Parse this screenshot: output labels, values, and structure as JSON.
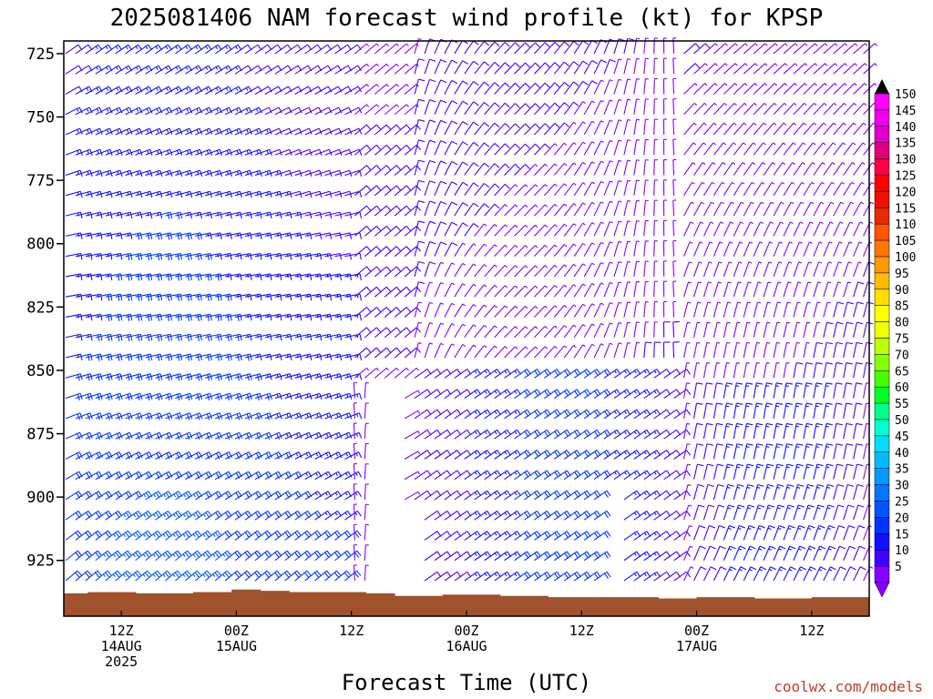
{
  "chart_data": {
    "type": "wind-barb-profile",
    "title": "2025081406 NAM forecast wind profile (kt) for KPSP",
    "xlabel": "Forecast Time (UTC)",
    "credit": "coolwx.com/models",
    "y_ticks": [
      725,
      750,
      775,
      800,
      825,
      850,
      875,
      900,
      925
    ],
    "y_range_hpa": [
      720,
      947
    ],
    "x_ticks": [
      {
        "hour": 6,
        "l1": "12Z",
        "l2": "14AUG",
        "l3": "2025"
      },
      {
        "hour": 18,
        "l1": "00Z",
        "l2": "15AUG",
        "l3": ""
      },
      {
        "hour": 30,
        "l1": "12Z",
        "l2": "",
        "l3": ""
      },
      {
        "hour": 42,
        "l1": "00Z",
        "l2": "16AUG",
        "l3": ""
      },
      {
        "hour": 54,
        "l1": "12Z",
        "l2": "",
        "l3": ""
      },
      {
        "hour": 66,
        "l1": "00Z",
        "l2": "17AUG",
        "l3": ""
      },
      {
        "hour": 78,
        "l1": "12Z",
        "l2": "",
        "l3": ""
      }
    ],
    "forecast_hours": [
      0,
      84
    ],
    "colorbar": {
      "levels": [
        150,
        145,
        140,
        135,
        130,
        125,
        120,
        115,
        110,
        105,
        100,
        95,
        90,
        85,
        80,
        75,
        70,
        65,
        60,
        55,
        50,
        45,
        40,
        35,
        30,
        25,
        20,
        15,
        10,
        5
      ],
      "colors": [
        "#ff00ff",
        "#ee00ee",
        "#dd00cc",
        "#e0007a",
        "#ff0044",
        "#ff0000",
        "#ee1100",
        "#e82a00",
        "#ff5500",
        "#ff7700",
        "#ff9900",
        "#ffbb00",
        "#ffdd00",
        "#ffff00",
        "#eeff00",
        "#bbff00",
        "#88ff00",
        "#44ff00",
        "#00ff22",
        "#00ff88",
        "#00ffcc",
        "#00ddff",
        "#00bbff",
        "#0099ff",
        "#0077ff",
        "#0055ff",
        "#0033ff",
        "#1111ff",
        "#4400ff",
        "#8800ff"
      ],
      "top_color": "#000000",
      "bottom_color": "#8800ff"
    },
    "terrain_color": "#a0522d",
    "terrain_surface_hpa": [
      {
        "hour": 0,
        "p": 938
      },
      {
        "hour": 2.5,
        "p": 937.5
      },
      {
        "hour": 7.5,
        "p": 938
      },
      {
        "hour": 13.5,
        "p": 937.5
      },
      {
        "hour": 17.5,
        "p": 936.5
      },
      {
        "hour": 20.5,
        "p": 937
      },
      {
        "hour": 23.5,
        "p": 937.5
      },
      {
        "hour": 31.5,
        "p": 938
      },
      {
        "hour": 34.5,
        "p": 939
      },
      {
        "hour": 39.5,
        "p": 938.5
      },
      {
        "hour": 45.5,
        "p": 939
      },
      {
        "hour": 50.5,
        "p": 939.5
      },
      {
        "hour": 56,
        "p": 939.5
      },
      {
        "hour": 62,
        "p": 940
      },
      {
        "hour": 66,
        "p": 939.5
      },
      {
        "hour": 72,
        "p": 940
      },
      {
        "hour": 78,
        "p": 939.5
      },
      {
        "hour": 84,
        "p": 940
      }
    ]
  }
}
